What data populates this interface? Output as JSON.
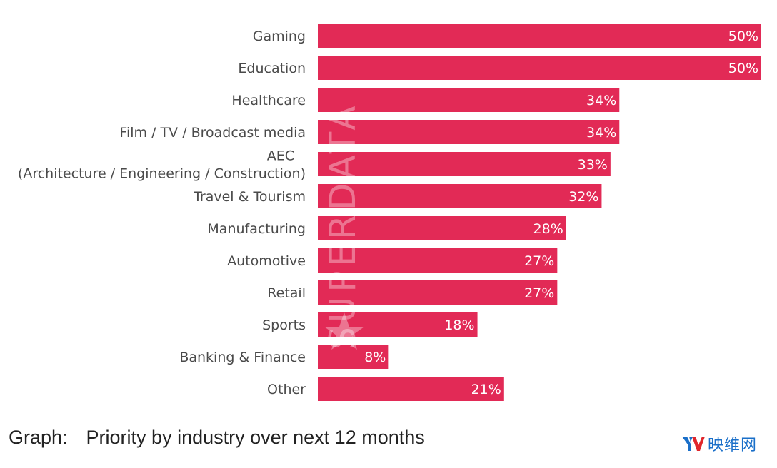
{
  "chart_data": {
    "type": "bar",
    "orientation": "horizontal",
    "title": "Priority by industry over next 12 months",
    "xlabel": "",
    "ylabel": "",
    "categories": [
      "Gaming",
      "Education",
      "Healthcare",
      "Film / TV / Broadcast media",
      "AEC\n(Architecture / Engineering / Construction)",
      "Travel & Tourism",
      "Manufacturing",
      "Automotive",
      "Retail",
      "Sports",
      "Banking & Finance",
      "Other"
    ],
    "values": [
      50,
      50,
      34,
      34,
      33,
      32,
      28,
      27,
      27,
      18,
      8,
      21
    ],
    "value_labels": [
      "50%",
      "50%",
      "34%",
      "34%",
      "33%",
      "32%",
      "28%",
      "27%",
      "27%",
      "18%",
      "8%",
      "21%"
    ],
    "unit": "%",
    "xlim": [
      0,
      50
    ],
    "grid": false,
    "legend": "none",
    "bar_color": "#e22a56",
    "watermark": "SUPERDATA"
  },
  "caption": {
    "prefix": "Graph:",
    "text": "Priority by industry over next 12 months"
  },
  "logo": {
    "mark": "YV",
    "text": "映维网",
    "colors": {
      "y": "#1a6fc9",
      "v": "#e0262b"
    }
  }
}
